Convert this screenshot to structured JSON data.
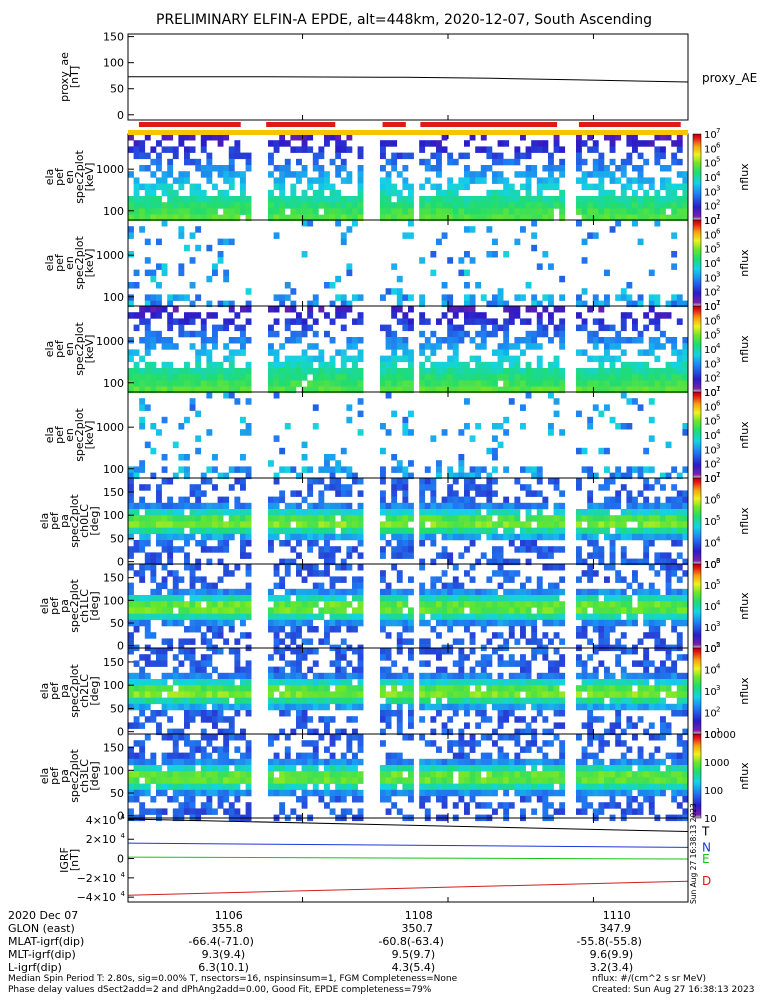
{
  "chart_data": {
    "type": "heatmap",
    "title": "PRELIMINARY ELFIN-A EPDE, alt=448km, 2020-12-07, South Ascending",
    "x_ticks": [
      "1106",
      "1108",
      "1110"
    ],
    "x_range": [
      1103.6,
      1111.3
    ],
    "data_gaps": [
      [
        1105.25,
        1105.45
      ],
      [
        1106.8,
        1107.05
      ],
      [
        1107.5,
        1107.6
      ],
      [
        1109.6,
        1109.7
      ]
    ],
    "panels": [
      {
        "id": "proxy_ae",
        "type": "line",
        "ylabel": "proxy_ae\n[nT]",
        "yticks": [
          "150",
          "100",
          "50",
          "0"
        ],
        "ylim": [
          -10,
          155
        ],
        "legend": "proxy_AE",
        "x": [
          1103.6,
          1105.5,
          1107.4,
          1108.6,
          1109.8,
          1111.3
        ],
        "values": [
          73,
          73,
          72,
          70,
          67,
          63
        ],
        "color": "#000000"
      },
      {
        "id": "pef_en_nonreal",
        "type": "heatmap",
        "ylabel": "ela\npef\nen\nspec2plot\n[keV]",
        "yticks": [
          "1000",
          "100"
        ],
        "ylog": true,
        "ylim": [
          60,
          7000
        ],
        "colorbar": {
          "label": "nflux",
          "min_exp": 1,
          "max_exp": 7,
          "tick_labels": [
            "10",
            "10",
            "10",
            "10",
            "10",
            "10",
            "10"
          ],
          "tick_exps": [
            "1",
            "2",
            "3",
            "4",
            "5",
            "6",
            "7"
          ]
        }
      },
      {
        "id": "pef_en_trapped_reflected",
        "type": "heatmap",
        "ylabel": "ela\npef\nen\nspec2plot\n[keV]",
        "yticks": [
          "1000",
          "100"
        ],
        "ylog": true,
        "ylim": [
          60,
          7000
        ],
        "colorbar": {
          "label": "nflux",
          "min_exp": 1,
          "max_exp": 7,
          "tick_labels": [
            "10",
            "10",
            "10",
            "10",
            "10",
            "10",
            "10"
          ],
          "tick_exps": [
            "1",
            "2",
            "3",
            "4",
            "5",
            "6",
            "7"
          ]
        }
      },
      {
        "id": "pef_en_trapped",
        "type": "heatmap",
        "ylabel": "ela\npef\nen\nspec2plot\n[keV]",
        "yticks": [
          "1000",
          "100"
        ],
        "ylog": true,
        "ylim": [
          60,
          7000
        ],
        "colorbar": {
          "label": "nflux",
          "min_exp": 1,
          "max_exp": 7,
          "tick_labels": [
            "10",
            "10",
            "10",
            "10",
            "10",
            "10",
            "10"
          ],
          "tick_exps": [
            "1",
            "2",
            "3",
            "4",
            "5",
            "6",
            "7"
          ]
        }
      },
      {
        "id": "pef_en_precip",
        "type": "heatmap",
        "ylabel": "ela\npef\nen\nspec2plot\n[keV]",
        "yticks": [
          "1000",
          "100"
        ],
        "ylog": true,
        "ylim": [
          60,
          7000
        ],
        "colorbar": {
          "label": "nflux",
          "min_exp": 1,
          "max_exp": 7,
          "tick_labels": [
            "10",
            "10",
            "10",
            "10",
            "10",
            "10",
            "10"
          ],
          "tick_exps": [
            "1",
            "2",
            "3",
            "4",
            "5",
            "6",
            "7"
          ]
        }
      },
      {
        "id": "pa_ch0",
        "type": "heatmap",
        "ylabel": "ela\npef\npa\nspec2plot\nch0LC\n[deg]",
        "yticks": [
          "150",
          "100",
          "50",
          "0"
        ],
        "ylim": [
          -5,
          180
        ],
        "colorbar": {
          "label": "nflux",
          "min_exp": 3,
          "max_exp": 7,
          "tick_labels": [
            "10",
            "10",
            "10",
            "10",
            "10"
          ],
          "tick_exps": [
            "3",
            "4",
            "5",
            "6",
            "7"
          ]
        }
      },
      {
        "id": "pa_ch1",
        "type": "heatmap",
        "ylabel": "ela\npef\npa\nspec2plot\nch1LC\n[deg]",
        "yticks": [
          "150",
          "100",
          "50",
          "0"
        ],
        "ylim": [
          -5,
          180
        ],
        "colorbar": {
          "label": "nflux",
          "min_exp": 2,
          "max_exp": 6,
          "tick_labels": [
            "10",
            "10",
            "10",
            "10",
            "10"
          ],
          "tick_exps": [
            "2",
            "3",
            "4",
            "5",
            "6"
          ]
        }
      },
      {
        "id": "pa_ch2",
        "type": "heatmap",
        "ylabel": "ela\npef\npa\nspec2plot\nch2LC\n[deg]",
        "yticks": [
          "150",
          "100",
          "50",
          "0"
        ],
        "ylim": [
          -5,
          180
        ],
        "colorbar": {
          "label": "nflux",
          "min_exp": 1,
          "max_exp": 5,
          "tick_labels": [
            "10",
            "10",
            "10",
            "10",
            "10"
          ],
          "tick_exps": [
            "1",
            "2",
            "3",
            "4",
            "5"
          ]
        }
      },
      {
        "id": "pa_ch3",
        "type": "heatmap",
        "ylabel": "ela\npef\npa\nspec2plot\nch3LC\n[deg]",
        "yticks": [
          "150",
          "100",
          "50",
          "0"
        ],
        "ylim": [
          -5,
          180
        ],
        "colorbar": {
          "label": "nflux",
          "min_exp": 1,
          "max_exp": 4,
          "tick_labels": [
            "10000",
            "1000",
            "100",
            "10"
          ],
          "tick_exps": []
        }
      },
      {
        "id": "igrf",
        "type": "line",
        "ylabel": "IGRF\n[nT]",
        "yticks": [
          "4×10",
          "2×10",
          "0",
          "−2×10",
          "−4×10"
        ],
        "ytick_exp": "4",
        "ylim": [
          -45000,
          42000
        ],
        "series": [
          {
            "name": "T",
            "color": "#000000",
            "x": [
              1103.6,
              1111.3
            ],
            "values": [
              41000,
              28000
            ]
          },
          {
            "name": "N",
            "color": "#1f35d8",
            "x": [
              1103.6,
              1111.3
            ],
            "values": [
              16000,
              11500
            ]
          },
          {
            "name": "E",
            "color": "#16c416",
            "x": [
              1103.6,
              1111.3
            ],
            "values": [
              1500,
              -500
            ]
          },
          {
            "name": "D",
            "color": "#d41c1c",
            "x": [
              1103.6,
              1111.3
            ],
            "values": [
              -38000,
              -23500
            ]
          }
        ]
      }
    ]
  },
  "side_stamp": "Sun Aug 27 16:38:13 2023",
  "footer": {
    "rows": [
      {
        "label": "2020 Dec 07",
        "values": [
          "1106",
          "1108",
          "1110"
        ]
      },
      {
        "label": "GLON (east)",
        "values": [
          "355.8",
          "350.7",
          "347.9"
        ]
      },
      {
        "label": "MLAT-igrf(dip)",
        "values": [
          "-66.4(-71.0)",
          "-60.8(-63.4)",
          "-55.8(-55.8)"
        ]
      },
      {
        "label": "MLT-igrf(dip)",
        "values": [
          "9.3(9.4)",
          "9.5(9.7)",
          "9.6(9.9)"
        ]
      },
      {
        "label": "L-igrf(dip)",
        "values": [
          "6.3(10.1)",
          "4.3(5.4)",
          "3.2(3.4)"
        ]
      }
    ],
    "note1": "Median Spin Period T: 2.80s, sig=0.00% T, nsectors=16, nspinsinsum=1, FGM Completeness=None",
    "note2": "Phase delay values dSect2add=2 and dPhAng2add=0.00, Good Fit, EPDE completeness=79%",
    "units": "nflux: #/(cm^2 s sr MeV)",
    "created": "Created: Sun Aug 27 16:38:13 2023"
  }
}
